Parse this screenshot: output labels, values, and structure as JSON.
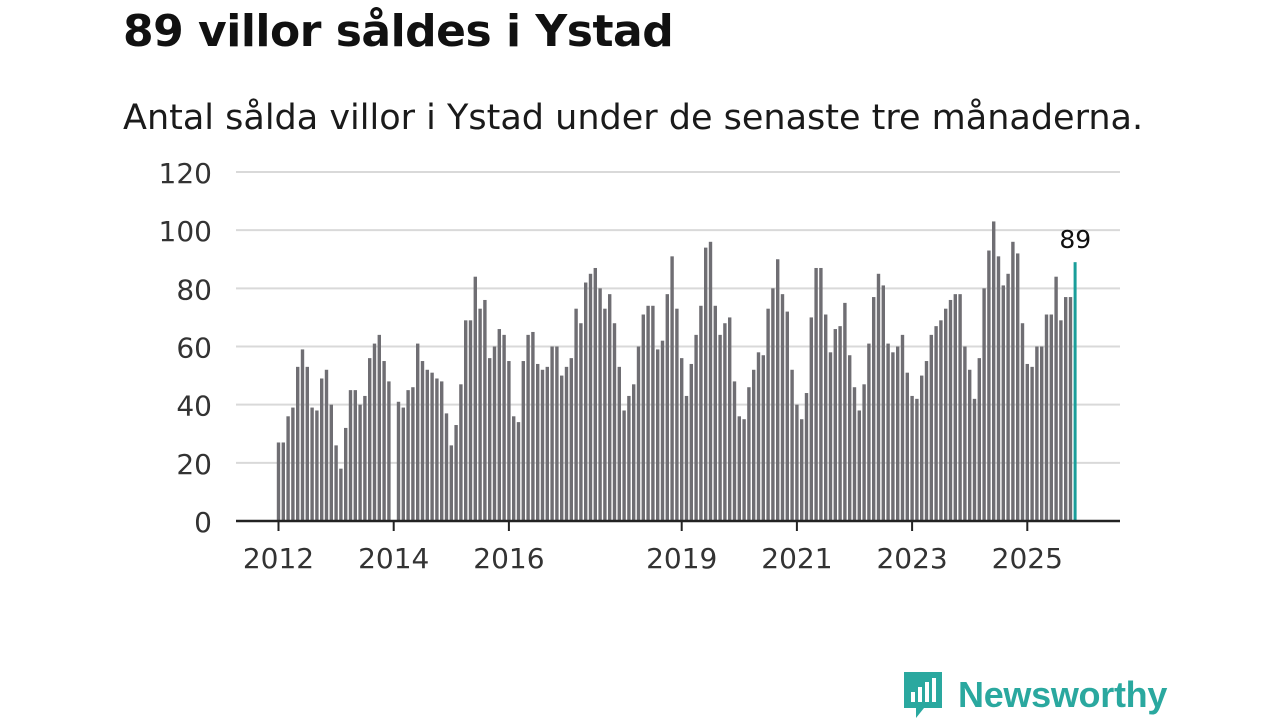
{
  "title": "89 villor såldes i Ystad",
  "subtitle": "Antal sålda villor i Ystad under de senaste tre månaderna.",
  "brand": {
    "name": "Newsworthy",
    "color": "#2aa89f"
  },
  "colors": {
    "bar": "#6f6e73",
    "highlight": "#1a9e9a",
    "grid": "#d9d9d9",
    "axis": "#222222"
  },
  "chart_data": {
    "type": "bar",
    "title": "89 villor såldes i Ystad",
    "xlabel": "",
    "ylabel": "",
    "ylim": [
      0,
      120
    ],
    "yticks": [
      0,
      20,
      40,
      60,
      80,
      100,
      120
    ],
    "xticks": [
      {
        "label": "2012",
        "index": 0
      },
      {
        "label": "2014",
        "index": 24
      },
      {
        "label": "2016",
        "index": 48
      },
      {
        "label": "2019",
        "index": 84
      },
      {
        "label": "2021",
        "index": 108
      },
      {
        "label": "2023",
        "index": 132
      },
      {
        "label": "2025",
        "index": 156
      }
    ],
    "x_start": "2012-01",
    "values": [
      27,
      27,
      36,
      39,
      53,
      59,
      53,
      39,
      38,
      49,
      52,
      40,
      26,
      18,
      32,
      45,
      45,
      40,
      43,
      56,
      61,
      64,
      55,
      48,
      null,
      41,
      39,
      45,
      46,
      61,
      55,
      52,
      51,
      49,
      48,
      37,
      26,
      33,
      47,
      69,
      69,
      84,
      73,
      76,
      56,
      60,
      66,
      64,
      55,
      36,
      34,
      55,
      64,
      65,
      54,
      52,
      53,
      60,
      60,
      50,
      53,
      56,
      73,
      68,
      82,
      85,
      87,
      80,
      73,
      78,
      68,
      53,
      38,
      43,
      47,
      60,
      71,
      74,
      74,
      59,
      62,
      78,
      91,
      73,
      56,
      43,
      54,
      64,
      74,
      94,
      96,
      74,
      64,
      68,
      70,
      48,
      36,
      35,
      46,
      52,
      58,
      57,
      73,
      80,
      90,
      78,
      72,
      52,
      40,
      35,
      44,
      70,
      87,
      87,
      71,
      58,
      66,
      67,
      75,
      57,
      46,
      38,
      47,
      61,
      77,
      85,
      81,
      61,
      58,
      60,
      64,
      51,
      43,
      42,
      50,
      55,
      64,
      67,
      69,
      73,
      76,
      78,
      78,
      60,
      52,
      42,
      56,
      80,
      93,
      103,
      91,
      81,
      85,
      96,
      92,
      68,
      54,
      53,
      60,
      60,
      71,
      71,
      84,
      69,
      77,
      77,
      89
    ],
    "highlight": {
      "index": 166,
      "value": 89,
      "label": "89"
    }
  }
}
